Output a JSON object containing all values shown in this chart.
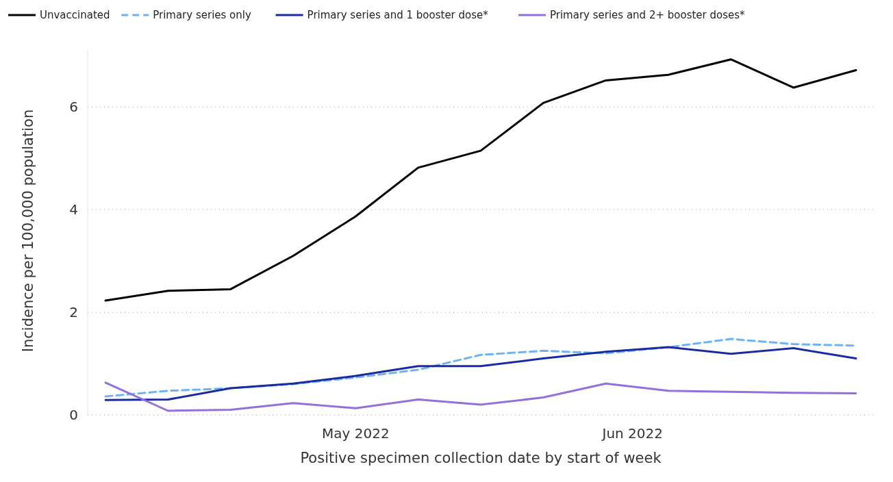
{
  "chart_data": {
    "type": "line",
    "xlabel": "Positive specimen collection date by start of week",
    "ylabel": "Incidence per 100,000 population",
    "x": [
      "2022-04-03",
      "2022-04-10",
      "2022-04-17",
      "2022-04-24",
      "2022-05-01",
      "2022-05-08",
      "2022-05-15",
      "2022-05-22",
      "2022-05-29",
      "2022-06-05",
      "2022-06-12",
      "2022-06-19",
      "2022-06-26"
    ],
    "xlim": [
      "2022-04-01",
      "2022-06-28"
    ],
    "xticks": [
      {
        "value": "2022-05-01",
        "label": "May 2022"
      },
      {
        "value": "2022-06-01",
        "label": "Jun 2022"
      }
    ],
    "ylim": [
      0,
      7.1
    ],
    "yticks": [
      0,
      2,
      4,
      6
    ],
    "grid": "y",
    "legend": "top left",
    "series": [
      {
        "name": "Unvaccinated",
        "color": "#000000",
        "values": [
          2.23,
          2.42,
          2.45,
          3.1,
          3.87,
          4.82,
          5.15,
          6.08,
          6.52,
          6.63,
          6.93,
          6.38,
          6.72
        ]
      },
      {
        "name": "Primary series only",
        "color": "#6ab4f5",
        "line_style": "dashed",
        "values": [
          0.36,
          0.47,
          0.52,
          0.6,
          0.73,
          0.88,
          1.17,
          1.25,
          1.2,
          1.32,
          1.48,
          1.38,
          1.35
        ]
      },
      {
        "name": "Primary series and 1 booster dose*",
        "color": "#1a2aa0",
        "values": [
          0.29,
          0.3,
          0.52,
          0.61,
          0.76,
          0.95,
          0.95,
          1.1,
          1.23,
          1.32,
          1.19,
          1.3,
          1.1
        ]
      },
      {
        "name": "Primary series and 2+ booster doses*",
        "color": "#9370db",
        "values": [
          0.63,
          0.08,
          0.1,
          0.23,
          0.13,
          0.3,
          0.2,
          0.34,
          0.61,
          0.47,
          0.45,
          0.43,
          0.42
        ]
      }
    ]
  }
}
